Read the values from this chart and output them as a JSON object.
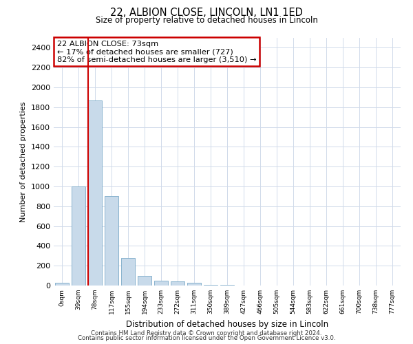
{
  "title_line1": "22, ALBION CLOSE, LINCOLN, LN1 1ED",
  "title_line2": "Size of property relative to detached houses in Lincoln",
  "xlabel": "Distribution of detached houses by size in Lincoln",
  "ylabel": "Number of detached properties",
  "bin_labels": [
    "0sqm",
    "39sqm",
    "78sqm",
    "117sqm",
    "155sqm",
    "194sqm",
    "233sqm",
    "272sqm",
    "311sqm",
    "350sqm",
    "389sqm",
    "427sqm",
    "466sqm",
    "505sqm",
    "544sqm",
    "583sqm",
    "622sqm",
    "661sqm",
    "700sqm",
    "738sqm",
    "777sqm"
  ],
  "bar_values": [
    25,
    1000,
    1870,
    900,
    280,
    95,
    50,
    40,
    25,
    10,
    5,
    3,
    2,
    2,
    1,
    1,
    1,
    1,
    1,
    1,
    0
  ],
  "bar_color": "#c8daea",
  "bar_edge_color": "#7aaac8",
  "vline_color": "#cc0000",
  "annotation_text": "22 ALBION CLOSE: 73sqm\n← 17% of detached houses are smaller (727)\n82% of semi-detached houses are larger (3,510) →",
  "annotation_box_color": "#ffffff",
  "annotation_box_edge": "#cc0000",
  "ylim_max": 2500,
  "yticks": [
    0,
    200,
    400,
    600,
    800,
    1000,
    1200,
    1400,
    1600,
    1800,
    2000,
    2200,
    2400
  ],
  "footer_line1": "Contains HM Land Registry data © Crown copyright and database right 2024.",
  "footer_line2": "Contains public sector information licensed under the Open Government Licence v3.0.",
  "background_color": "#ffffff",
  "grid_color": "#d0daea"
}
